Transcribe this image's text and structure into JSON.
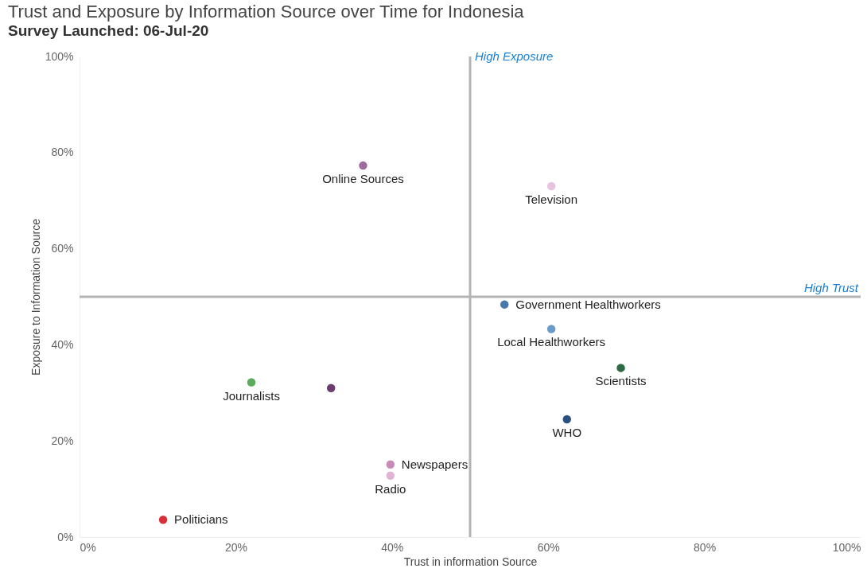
{
  "chart_data": {
    "type": "scatter",
    "title": "Trust and Exposure by Information Source over Time for Indonesia",
    "subtitle": "Survey Launched: 06-Jul-20",
    "xlabel": "Trust in information Source",
    "ylabel": "Exposure to Information Source",
    "xlim": [
      0,
      100
    ],
    "ylim": [
      0,
      100
    ],
    "xticks": [
      {
        "value": 0,
        "label": "0%"
      },
      {
        "value": 20,
        "label": "20%"
      },
      {
        "value": 40,
        "label": "40%"
      },
      {
        "value": 60,
        "label": "60%"
      },
      {
        "value": 80,
        "label": "80%"
      },
      {
        "value": 100,
        "label": "100%"
      }
    ],
    "yticks": [
      {
        "value": 0,
        "label": "0%"
      },
      {
        "value": 20,
        "label": "20%"
      },
      {
        "value": 40,
        "label": "40%"
      },
      {
        "value": 60,
        "label": "60%"
      },
      {
        "value": 80,
        "label": "80%"
      },
      {
        "value": 100,
        "label": "100%"
      }
    ],
    "grid": false,
    "series": [
      {
        "name": "Online Sources",
        "color": "#9e6b9e",
        "x": [
          36.3
        ],
        "values": [
          77.3
        ]
      },
      {
        "name": "Television",
        "color": "#e8c3e0",
        "x": [
          60.4
        ],
        "values": [
          73
        ]
      },
      {
        "name": "Government Healthworkers",
        "color": "#4a78a8",
        "x": [
          54.4
        ],
        "values": [
          48.4
        ]
      },
      {
        "name": "Local Healthworkers",
        "color": "#6b9bc8",
        "x": [
          60.4
        ],
        "values": [
          43.3
        ]
      },
      {
        "name": "Scientists",
        "color": "#2e6b45",
        "x": [
          69.3
        ],
        "values": [
          35.2
        ]
      },
      {
        "name": "WHO",
        "color": "#2b5080",
        "x": [
          62.4
        ],
        "values": [
          24.5
        ]
      },
      {
        "name": "Journalists",
        "color": "#5aab5a",
        "x": [
          22
        ],
        "values": [
          32.2
        ]
      },
      {
        "color": "#6b3d6e",
        "x": [
          32.2
        ],
        "values": [
          31
        ]
      },
      {
        "name": "Newspapers",
        "color": "#c98cb8",
        "x": [
          39.8
        ],
        "values": [
          15.1
        ]
      },
      {
        "name": "Radio",
        "color": "#e0b4d4",
        "x": [
          39.8
        ],
        "values": [
          12.8
        ]
      },
      {
        "name": "Politicians",
        "color": "#d8303a",
        "x": [
          10.7
        ],
        "values": [
          3.6
        ]
      }
    ],
    "ref_lines": [
      {
        "axis": "x",
        "value": 50,
        "label": "High Exposure",
        "color": "#b3b3b3"
      },
      {
        "axis": "y",
        "value": 50,
        "label": "High Trust",
        "color": "#b3b3b3"
      }
    ]
  }
}
